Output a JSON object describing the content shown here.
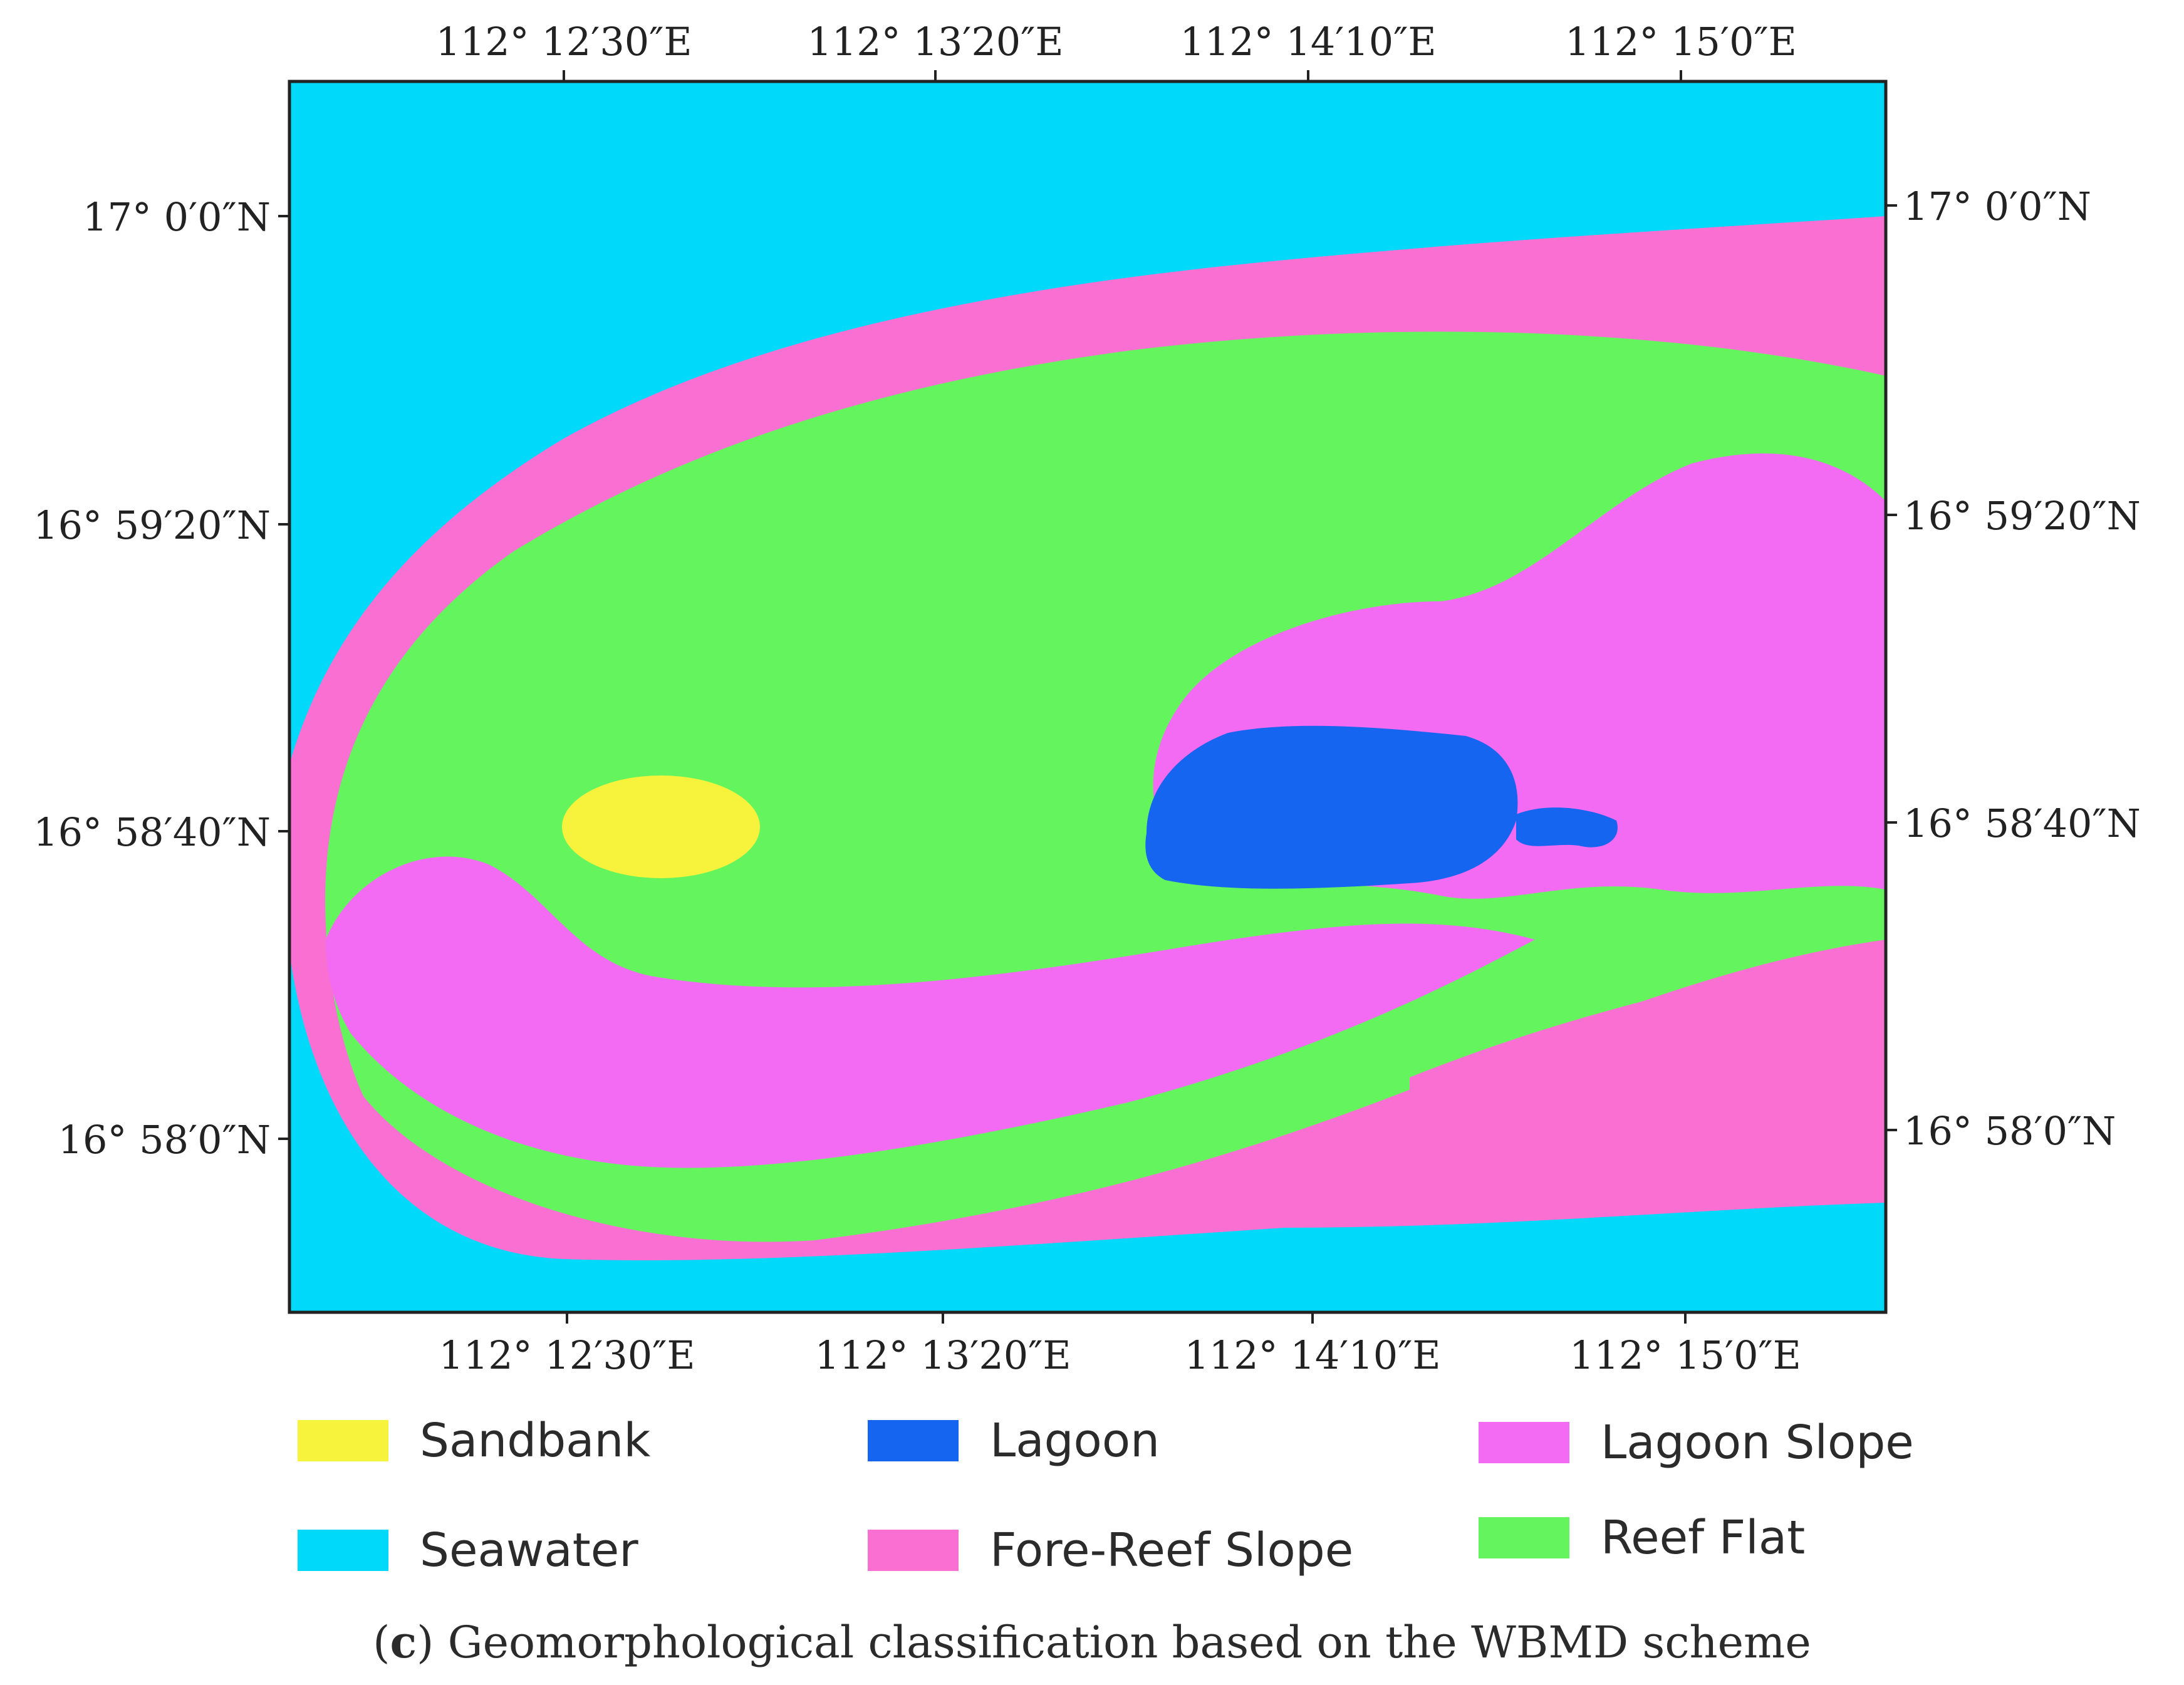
{
  "map": {
    "top_axis_labels": [
      "112° 12′30″E",
      "112° 13′20″E",
      "112° 14′10″E",
      "112° 15′0″E"
    ],
    "bottom_axis_labels": [
      "112° 12′30″E",
      "112° 13′20″E",
      "112° 14′10″E",
      "112° 15′0″E"
    ],
    "left_axis_labels": [
      "17° 0′0″N",
      "16° 59′20″N",
      "16° 58′40″N",
      "16° 58′0″N"
    ],
    "right_axis_labels": [
      "17° 0′0″N",
      "16° 59′20″N",
      "16° 58′40″N",
      "16° 58′0″N"
    ]
  },
  "legend": [
    {
      "label": "Sandbank",
      "color": "#f7f23c"
    },
    {
      "label": "Lagoon",
      "color": "#1565f0"
    },
    {
      "label": "Lagoon Slope",
      "color": "#f26bf2"
    },
    {
      "label": "Seawater",
      "color": "#00d9f9"
    },
    {
      "label": "Fore-Reef Slope",
      "color": "#fa70d2"
    },
    {
      "label": "Reef Flat",
      "color": "#64f55e"
    }
  ],
  "caption": {
    "letter": "c",
    "text": "Geomorphological classification based on the WBMD scheme"
  }
}
